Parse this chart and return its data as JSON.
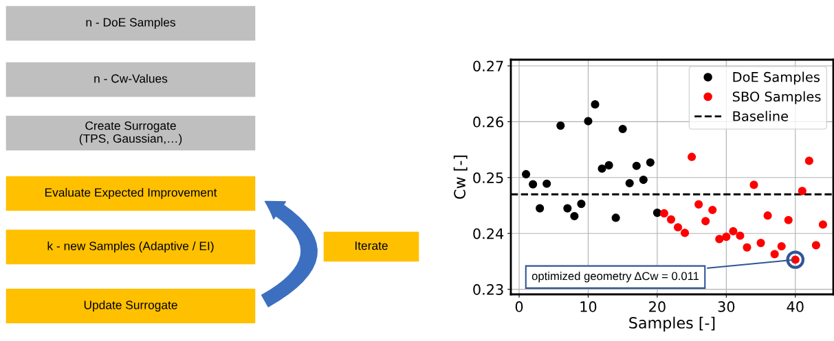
{
  "chart_data": [
    {
      "type": "other",
      "annotations": [
        "n - DoE Samples",
        "n - Cw-Values",
        "Create Surrogate\n(TPS, Gaussian,…)",
        "Evaluate Expected Improvement",
        "k - new Samples (Adaptive / EI)",
        "Update Surrogate",
        "Iterate"
      ],
      "colors": [
        "#bfbfbf",
        "#bfbfbf",
        "#bfbfbf",
        "#ffc000",
        "#ffc000",
        "#ffc000",
        "#ffc000"
      ]
    },
    {
      "type": "scatter",
      "xlabel": "Samples [-]",
      "ylabel": "Cw [-]",
      "xlim": [
        -1.2,
        45.5
      ],
      "xticks": [
        0,
        10,
        20,
        30,
        40
      ],
      "ylim": [
        0.2291,
        0.2711
      ],
      "yticks": [
        0.23,
        0.24,
        0.25,
        0.26,
        0.27
      ],
      "grid": true,
      "legend": "top right",
      "marker": "circle",
      "series": [
        {
          "name": "DoE Samples",
          "color": "#000000",
          "x": [
            1,
            2,
            3,
            4,
            6,
            7,
            8,
            9,
            10,
            11,
            12,
            13,
            14,
            15,
            16,
            17,
            18,
            19,
            20
          ],
          "values": [
            0.2506,
            0.2488,
            0.2445,
            0.2489,
            0.2593,
            0.2445,
            0.2431,
            0.2453,
            0.2601,
            0.2631,
            0.2516,
            0.2522,
            0.2428,
            0.2587,
            0.249,
            0.2521,
            0.2496,
            0.2527,
            0.2437
          ]
        },
        {
          "name": "SBO Samples",
          "color": "#ff0000",
          "x": [
            21,
            22,
            23,
            24,
            25,
            26,
            27,
            28,
            29,
            30,
            31,
            32,
            33,
            34,
            35,
            36,
            37,
            38,
            39,
            40,
            41,
            42,
            43,
            44
          ],
          "values": [
            0.2436,
            0.2425,
            0.2411,
            0.2401,
            0.2537,
            0.2452,
            0.2422,
            0.2442,
            0.239,
            0.2394,
            0.2404,
            0.2396,
            0.2375,
            0.2487,
            0.2383,
            0.2432,
            0.2363,
            0.2377,
            0.2424,
            0.2353,
            0.2476,
            0.253,
            0.2379,
            0.2416
          ]
        }
      ],
      "ref_lines": [
        {
          "axis": "y",
          "value": 0.247,
          "label": "Baseline",
          "color": "#000000",
          "line_style": "dashed"
        }
      ],
      "annotations": [
        {
          "text": "optimized geometry ΔCw = 0.011",
          "x": 40,
          "y": 0.2353
        }
      ]
    }
  ]
}
